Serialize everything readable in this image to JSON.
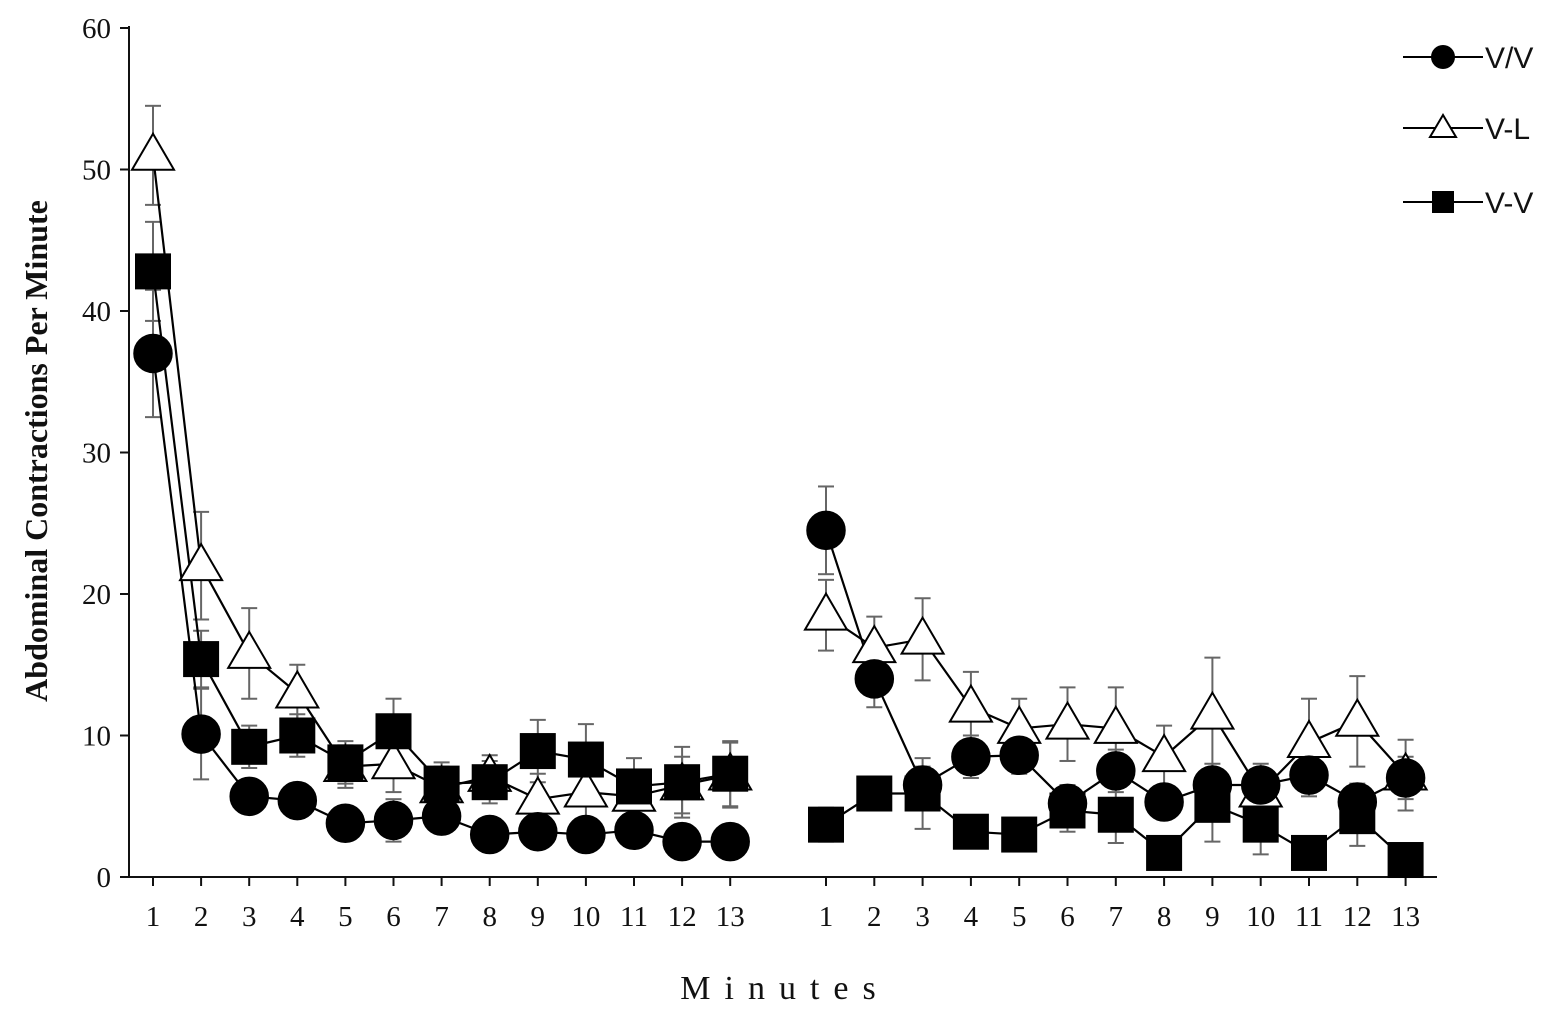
{
  "chart_data": {
    "type": "line",
    "xlabel": "Minutes",
    "ylabel": "Abdominal Contractions Per Minute",
    "ylim": [
      0,
      60
    ],
    "yticks": [
      "0",
      "10",
      "20",
      "30",
      "40",
      "50",
      "60"
    ],
    "grid": false,
    "legend_position": "top-right",
    "panels": [
      {
        "x": [
          "1",
          "2",
          "3",
          "4",
          "5",
          "6",
          "7",
          "8",
          "9",
          "10",
          "11",
          "12",
          "13"
        ],
        "series": [
          {
            "name": "V/V",
            "marker": "filled-circle",
            "values": [
              37,
              10.1,
              5.7,
              5.4,
              3.8,
              4.0,
              4.3,
              3.0,
              3.2,
              3.0,
              3.3,
              2.5,
              2.5
            ],
            "errors": [
              4.5,
              3.2,
              1.2,
              1.2,
              1.0,
              1.5,
              1.2,
              0.8,
              0.8,
              0.8,
              0.8,
              0.6,
              0.6
            ]
          },
          {
            "name": "V-L",
            "marker": "open-triangle",
            "values": [
              51,
              22.0,
              15.8,
              13.0,
              7.8,
              8.0,
              6.3,
              7.1,
              5.5,
              6.0,
              5.7,
              6.5,
              7.2
            ],
            "errors": [
              3.5,
              3.8,
              3.2,
              2.0,
              1.5,
              2.0,
              1.5,
              1.5,
              1.8,
              2.0,
              1.5,
              2.0,
              2.3
            ]
          },
          {
            "name": "V-V",
            "marker": "filled-square",
            "values": [
              42.8,
              15.4,
              9.2,
              10.0,
              8.1,
              10.3,
              6.6,
              6.7,
              8.9,
              8.3,
              6.4,
              6.7,
              7.3
            ],
            "errors": [
              3.5,
              2.0,
              1.5,
              1.5,
              1.5,
              2.3,
              1.5,
              1.5,
              2.2,
              2.5,
              2.0,
              2.5,
              2.3
            ]
          }
        ]
      },
      {
        "x": [
          "1",
          "2",
          "3",
          "4",
          "5",
          "6",
          "7",
          "8",
          "9",
          "10",
          "11",
          "12",
          "13"
        ],
        "series": [
          {
            "name": "V/V",
            "marker": "filled-circle",
            "values": [
              24.5,
              14.0,
              6.5,
              8.5,
              8.6,
              5.2,
              7.5,
              5.3,
              6.5,
              6.5,
              7.2,
              5.3,
              7.0
            ],
            "errors": [
              3.1,
              2.0,
              1.3,
              1.5,
              1.3,
              1.3,
              1.5,
              1.2,
              1.5,
              1.2,
              1.5,
              1.3,
              1.5
            ]
          },
          {
            "name": "V-L",
            "marker": "open-triangle",
            "values": [
              18.5,
              16.2,
              16.8,
              12.0,
              10.5,
              10.8,
              10.5,
              8.5,
              11.5,
              6.0,
              9.5,
              11.0,
              7.2
            ],
            "errors": [
              2.5,
              2.2,
              2.9,
              2.5,
              2.1,
              2.6,
              2.9,
              2.2,
              4.0,
              2.0,
              3.1,
              3.2,
              2.5
            ]
          },
          {
            "name": "V-V",
            "marker": "filled-square",
            "values": [
              3.7,
              5.9,
              5.9,
              3.2,
              3.0,
              4.7,
              4.4,
              1.7,
              5.1,
              3.7,
              1.7,
              4.3,
              1.2
            ],
            "errors": [
              1.2,
              1.2,
              2.5,
              1.0,
              1.0,
              1.5,
              2.0,
              0.8,
              2.6,
              2.1,
              0.8,
              2.1,
              0.8
            ]
          }
        ]
      }
    ]
  }
}
